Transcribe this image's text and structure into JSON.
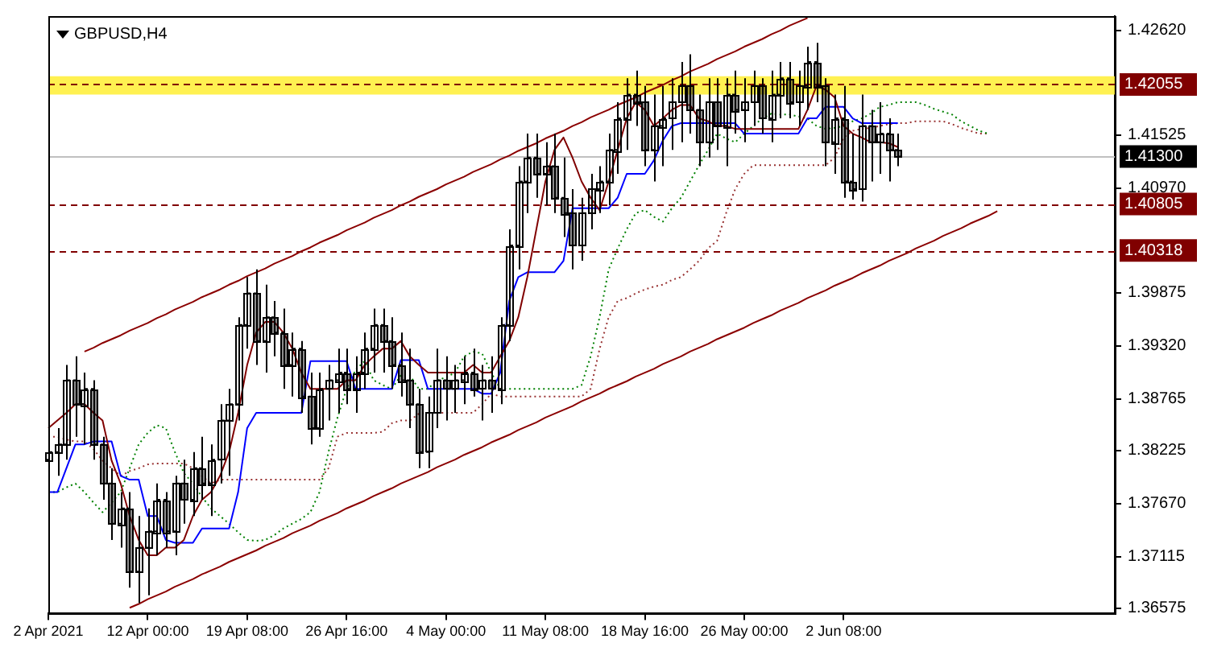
{
  "chart_data": {
    "type": "candlestick",
    "title": "GBPUSD,H4",
    "color": "#000000",
    "categories": [
      "2 Apr 2021",
      null,
      null,
      null,
      null,
      null,
      null,
      null,
      null,
      null,
      null,
      "12 Apr 00:00",
      null,
      null,
      null,
      null,
      null,
      null,
      null,
      null,
      null,
      null,
      "19 Apr 08:00",
      null,
      null,
      null,
      null,
      null,
      null,
      null,
      null,
      null,
      null,
      "26 Apr 16:00",
      null,
      null,
      null,
      null,
      null,
      null,
      null,
      null,
      null,
      null,
      "4 May 00:00",
      null,
      null,
      null,
      null,
      null,
      null,
      null,
      null,
      null,
      null,
      "11 May 08:00",
      null,
      null,
      null,
      null,
      null,
      null,
      null,
      null,
      null,
      null,
      "18 May 16:00",
      null,
      null,
      null,
      null,
      null,
      null,
      null,
      null,
      null,
      null,
      "26 May 00:00",
      null,
      null,
      null,
      null,
      null,
      null,
      null,
      null,
      null,
      null,
      "2 Jun 08:00",
      null,
      null,
      null,
      null,
      null,
      null,
      null,
      null,
      null,
      null,
      null,
      null,
      null,
      null,
      null,
      null,
      null,
      null,
      null,
      null,
      null,
      null,
      null,
      null,
      null,
      null,
      null,
      null,
      null,
      null
    ],
    "ohlc": [
      [
        1.3813,
        1.3837,
        1.3788,
        1.3821
      ],
      [
        1.3821,
        1.3846,
        1.3796,
        1.3829
      ],
      [
        1.3829,
        1.3912,
        1.3813,
        1.3896
      ],
      [
        1.3896,
        1.3921,
        1.3837,
        1.3871
      ],
      [
        1.3871,
        1.3904,
        1.3829,
        1.3887
      ],
      [
        1.3887,
        1.3896,
        1.3813,
        1.3829
      ],
      [
        1.3829,
        1.3837,
        1.3771,
        1.3788
      ],
      [
        1.3788,
        1.3804,
        1.3729,
        1.3746
      ],
      [
        1.3746,
        1.3779,
        1.3721,
        1.3762
      ],
      [
        1.3762,
        1.3779,
        1.3679,
        1.3696
      ],
      [
        1.3696,
        1.3754,
        1.3663,
        1.3721
      ],
      [
        1.3721,
        1.3762,
        1.3671,
        1.3738
      ],
      [
        1.3738,
        1.3788,
        1.3713,
        1.3771
      ],
      [
        1.3771,
        1.3779,
        1.3721,
        1.3738
      ],
      [
        1.3738,
        1.3796,
        1.3713,
        1.3788
      ],
      [
        1.3788,
        1.3813,
        1.3746,
        1.3771
      ],
      [
        1.3771,
        1.3821,
        1.3754,
        1.3804
      ],
      [
        1.3804,
        1.3837,
        1.3771,
        1.3788
      ],
      [
        1.3788,
        1.3829,
        1.3754,
        1.3813
      ],
      [
        1.3813,
        1.3871,
        1.3788,
        1.3854
      ],
      [
        1.3854,
        1.3887,
        1.3796,
        1.3871
      ],
      [
        1.3871,
        1.3962,
        1.3854,
        1.3954
      ],
      [
        1.3954,
        1.4004,
        1.3929,
        1.3987
      ],
      [
        1.3987,
        1.4012,
        1.3912,
        1.3937
      ],
      [
        1.3937,
        1.3996,
        1.3904,
        1.3962
      ],
      [
        1.3962,
        1.3979,
        1.3921,
        1.3946
      ],
      [
        1.3946,
        1.3971,
        1.3887,
        1.3912
      ],
      [
        1.3912,
        1.3946,
        1.3879,
        1.3929
      ],
      [
        1.3929,
        1.3937,
        1.3862,
        1.3879
      ],
      [
        1.3879,
        1.3904,
        1.3829,
        1.3846
      ],
      [
        1.3846,
        1.3904,
        1.3837,
        1.3887
      ],
      [
        1.3887,
        1.3912,
        1.3854,
        1.3896
      ],
      [
        1.3896,
        1.3929,
        1.3862,
        1.3904
      ],
      [
        1.3904,
        1.3929,
        1.3871,
        1.3887
      ],
      [
        1.3887,
        1.3921,
        1.3862,
        1.3904
      ],
      [
        1.3904,
        1.3946,
        1.3887,
        1.3929
      ],
      [
        1.3929,
        1.3971,
        1.3904,
        1.3954
      ],
      [
        1.3954,
        1.3971,
        1.3904,
        1.3937
      ],
      [
        1.3937,
        1.3962,
        1.3887,
        1.3912
      ],
      [
        1.3912,
        1.3946,
        1.3879,
        1.3896
      ],
      [
        1.3896,
        1.3929,
        1.3846,
        1.3871
      ],
      [
        1.3871,
        1.3887,
        1.3804,
        1.3821
      ],
      [
        1.3821,
        1.3879,
        1.3804,
        1.3862
      ],
      [
        1.3862,
        1.3929,
        1.3846,
        1.3896
      ],
      [
        1.3896,
        1.3921,
        1.3854,
        1.3887
      ],
      [
        1.3887,
        1.3912,
        1.3862,
        1.3896
      ],
      [
        1.3896,
        1.3921,
        1.3871,
        1.3904
      ],
      [
        1.3904,
        1.3929,
        1.3879,
        1.3887
      ],
      [
        1.3887,
        1.3912,
        1.3854,
        1.3896
      ],
      [
        1.3896,
        1.3921,
        1.3862,
        1.3887
      ],
      [
        1.3887,
        1.3962,
        1.3871,
        1.3954
      ],
      [
        1.3954,
        1.4054,
        1.3937,
        1.4037
      ],
      [
        1.4037,
        1.412,
        1.4012,
        1.4104
      ],
      [
        1.4104,
        1.4154,
        1.4071,
        1.4129
      ],
      [
        1.4129,
        1.4154,
        1.4087,
        1.4112
      ],
      [
        1.4112,
        1.4145,
        1.4079,
        1.412
      ],
      [
        1.412,
        1.4154,
        1.4071,
        1.4087
      ],
      [
        1.4087,
        1.4129,
        1.4046,
        1.4071
      ],
      [
        1.4071,
        1.4096,
        1.4012,
        1.4037
      ],
      [
        1.4037,
        1.4087,
        1.4021,
        1.4071
      ],
      [
        1.4071,
        1.4112,
        1.4054,
        1.4096
      ],
      [
        1.4096,
        1.412,
        1.4071,
        1.4104
      ],
      [
        1.4104,
        1.4154,
        1.4079,
        1.4137
      ],
      [
        1.4137,
        1.4187,
        1.4112,
        1.417
      ],
      [
        1.417,
        1.4212,
        1.4137,
        1.4195
      ],
      [
        1.4195,
        1.422,
        1.4162,
        1.4187
      ],
      [
        1.4187,
        1.4204,
        1.412,
        1.4137
      ],
      [
        1.4137,
        1.4195,
        1.4104,
        1.4162
      ],
      [
        1.4162,
        1.4204,
        1.412,
        1.417
      ],
      [
        1.417,
        1.4212,
        1.4137,
        1.4187
      ],
      [
        1.4187,
        1.4229,
        1.4145,
        1.4204
      ],
      [
        1.4204,
        1.4237,
        1.4154,
        1.4179
      ],
      [
        1.4179,
        1.4195,
        1.412,
        1.4145
      ],
      [
        1.4145,
        1.4212,
        1.4129,
        1.4187
      ],
      [
        1.4187,
        1.4212,
        1.4137,
        1.4162
      ],
      [
        1.4162,
        1.4212,
        1.412,
        1.4195
      ],
      [
        1.4195,
        1.422,
        1.4154,
        1.4179
      ],
      [
        1.4179,
        1.4212,
        1.4145,
        1.4187
      ],
      [
        1.4187,
        1.422,
        1.4162,
        1.4204
      ],
      [
        1.4204,
        1.4212,
        1.4154,
        1.417
      ],
      [
        1.417,
        1.422,
        1.4145,
        1.4195
      ],
      [
        1.4195,
        1.4229,
        1.417,
        1.4212
      ],
      [
        1.4212,
        1.4229,
        1.417,
        1.4187
      ],
      [
        1.4187,
        1.422,
        1.4162,
        1.4204
      ],
      [
        1.4204,
        1.4245,
        1.4179,
        1.4229
      ],
      [
        1.4229,
        1.4249,
        1.4187,
        1.4204
      ],
      [
        1.4204,
        1.4212,
        1.412,
        1.4145
      ],
      [
        1.4145,
        1.4195,
        1.4112,
        1.417
      ],
      [
        1.417,
        1.4204,
        1.4087,
        1.4104
      ],
      [
        1.4104,
        1.4154,
        1.4085,
        1.4096
      ],
      [
        1.4096,
        1.4195,
        1.4083,
        1.4162
      ],
      [
        1.4162,
        1.4179,
        1.4104,
        1.4145
      ],
      [
        1.4145,
        1.4187,
        1.4112,
        1.4154
      ],
      [
        1.4154,
        1.417,
        1.4104,
        1.4137
      ],
      [
        1.4137,
        1.4154,
        1.412,
        1.413
      ],
      null,
      null,
      null,
      null,
      null,
      null,
      null,
      null,
      null,
      null,
      null,
      null,
      null,
      null,
      null,
      null,
      null,
      null,
      null,
      null,
      null,
      null,
      null,
      null
    ],
    "series": [
      {
        "type": "line",
        "color": "#800000",
        "values": [
          1.3846,
          1.3854,
          1.3862,
          1.3871,
          1.3871,
          1.3862,
          1.3854,
          1.3812,
          1.3788,
          1.3754,
          1.3729,
          1.3713,
          1.3713,
          1.3721,
          1.3721,
          1.3729,
          1.3754,
          1.3771,
          1.3779,
          1.3796,
          1.3821,
          1.3862,
          1.3912,
          1.3946,
          1.3957,
          1.3957,
          1.3946,
          1.3929,
          1.3904,
          1.3887,
          1.3887,
          1.3887,
          1.3887,
          1.3896,
          1.3896,
          1.3912,
          1.3921,
          1.3929,
          1.3929,
          1.3937,
          1.3921,
          1.3912,
          1.3904,
          1.3904,
          1.3904,
          1.3904,
          1.3904,
          1.3912,
          1.3904,
          1.3904,
          1.3921,
          1.3937,
          1.3962,
          1.4004,
          1.4054,
          1.4104,
          1.4137,
          1.415,
          1.4129,
          1.4104,
          1.4087,
          1.4074,
          1.4104,
          1.4137,
          1.417,
          1.4187,
          1.4179,
          1.4162,
          1.417,
          1.4179,
          1.4184,
          1.4184,
          1.417,
          1.4167,
          1.4162,
          1.4162,
          1.4159,
          1.4159,
          1.4159,
          1.4159,
          1.4159,
          1.4159,
          1.4159,
          1.4159,
          1.4179,
          1.4204,
          1.42,
          1.4192,
          1.4162,
          1.4154,
          1.415,
          1.4145,
          1.4145,
          1.4144,
          1.414,
          null,
          null,
          null,
          null,
          null,
          null,
          null,
          null,
          null,
          null,
          null,
          null,
          null,
          null,
          null,
          null,
          null,
          null,
          null,
          null,
          null,
          null,
          null,
          null
        ]
      },
      {
        "type": "line",
        "color": "#0000ff",
        "values": [
          1.3779,
          1.3779,
          1.3804,
          1.3829,
          1.3829,
          1.3832,
          1.3832,
          1.3832,
          1.3796,
          1.3792,
          1.3792,
          1.3754,
          1.3754,
          1.3729,
          1.3726,
          1.3726,
          1.3726,
          1.3741,
          1.3741,
          1.3741,
          1.3741,
          1.3779,
          1.3846,
          1.3862,
          1.3862,
          1.3862,
          1.3862,
          1.3862,
          1.3862,
          1.3916,
          1.3916,
          1.3916,
          1.3916,
          1.3916,
          1.3887,
          1.3887,
          1.3887,
          1.3887,
          1.3887,
          1.3917,
          1.3917,
          1.3917,
          1.3887,
          1.3887,
          1.3887,
          1.3887,
          1.3887,
          1.3887,
          1.3882,
          1.3882,
          1.3904,
          1.3979,
          1.4004,
          1.4009,
          1.4009,
          1.4009,
          1.4009,
          1.4021,
          1.4076,
          1.4076,
          1.4076,
          1.4076,
          1.4076,
          1.4087,
          1.4112,
          1.4112,
          1.4112,
          1.4126,
          1.4147,
          1.4162,
          1.4165,
          1.4165,
          1.4165,
          1.4165,
          1.4165,
          1.4165,
          1.4165,
          1.4154,
          1.4154,
          1.4154,
          1.4154,
          1.4154,
          1.4154,
          1.4154,
          1.417,
          1.417,
          1.4182,
          1.4182,
          1.4182,
          1.417,
          1.4165,
          1.4165,
          1.4165,
          1.4165,
          1.4165,
          null,
          null,
          null,
          null,
          null,
          null,
          null,
          null,
          null,
          null,
          null,
          null,
          null,
          null,
          null,
          null,
          null,
          null,
          null,
          null,
          null,
          null,
          null,
          null
        ]
      },
      {
        "type": "line",
        "color": "#008000",
        "line_style": "dotted",
        "values": [
          1.3779,
          1.3779,
          1.3784,
          1.3788,
          1.3779,
          1.3768,
          1.3758,
          1.3768,
          1.3779,
          1.3804,
          1.3829,
          1.3841,
          1.3849,
          1.3846,
          1.3821,
          1.3799,
          1.3788,
          1.3774,
          1.3762,
          1.3754,
          1.3746,
          1.3737,
          1.3729,
          1.3728,
          1.3729,
          1.3734,
          1.3741,
          1.3746,
          1.3751,
          1.3758,
          1.3779,
          1.3821,
          1.3857,
          1.3887,
          1.3907,
          1.3916,
          1.3896,
          1.3891,
          1.3887,
          1.3901,
          1.3901,
          1.3887,
          1.3887,
          1.3896,
          1.3899,
          1.3904,
          1.3921,
          1.3926,
          1.3924,
          1.3904,
          1.3887,
          1.3887,
          1.3887,
          1.3887,
          1.3887,
          1.3887,
          1.3887,
          1.3887,
          1.3887,
          1.3891,
          1.3921,
          1.3962,
          1.4012,
          1.4034,
          1.4054,
          1.4071,
          1.4074,
          1.4067,
          1.4062,
          1.4076,
          1.4087,
          1.4104,
          1.4121,
          1.4137,
          1.4154,
          1.4149,
          1.4145,
          1.4154,
          1.4162,
          1.417,
          1.4175,
          1.4174,
          1.4174,
          1.4172,
          1.417,
          1.4162,
          1.4159,
          1.416,
          1.4162,
          1.4167,
          1.417,
          1.4175,
          1.4182,
          1.4184,
          1.4187,
          1.4187,
          1.4187,
          1.4184,
          1.418,
          1.4177,
          1.4174,
          1.4167,
          1.4162,
          1.4157,
          1.4154,
          null,
          null,
          null,
          null,
          null,
          null,
          null,
          null,
          null,
          null,
          null,
          null,
          null,
          null
        ]
      },
      {
        "type": "line",
        "color": "#993333",
        "line_style": "dotted",
        "values": [
          1.3837,
          1.3837,
          1.3834,
          1.3832,
          1.3832,
          1.3824,
          1.3812,
          1.3804,
          1.3796,
          1.3801,
          1.3804,
          1.3808,
          1.3809,
          1.3809,
          1.3809,
          1.3809,
          1.3804,
          1.3796,
          1.3788,
          1.3792,
          1.3792,
          1.3792,
          1.3792,
          1.3792,
          1.3792,
          1.3792,
          1.3792,
          1.3792,
          1.3792,
          1.3792,
          1.3792,
          1.3804,
          1.3837,
          1.3841,
          1.3841,
          1.3841,
          1.3841,
          1.3842,
          1.3851,
          1.3854,
          1.3854,
          1.3861,
          1.3862,
          1.3862,
          1.3862,
          1.3862,
          1.3862,
          1.3862,
          1.3871,
          1.3882,
          1.3879,
          1.3879,
          1.3879,
          1.3879,
          1.3879,
          1.3879,
          1.3879,
          1.3879,
          1.3879,
          1.3879,
          1.3887,
          1.3929,
          1.3962,
          1.3979,
          1.3982,
          1.3987,
          1.3991,
          1.3994,
          1.3996,
          1.4001,
          1.4004,
          1.4012,
          1.4021,
          1.4034,
          1.4042,
          1.4071,
          1.4096,
          1.4112,
          1.4121,
          1.4121,
          1.4121,
          1.4121,
          1.4121,
          1.4121,
          1.4121,
          1.4121,
          1.4121,
          1.4129,
          1.415,
          1.4157,
          1.4159,
          1.416,
          1.4162,
          1.4164,
          1.4165,
          1.4165,
          1.4167,
          1.4167,
          1.4167,
          1.4167,
          1.4164,
          1.416,
          1.4157,
          1.4154,
          1.4154,
          null,
          null,
          null,
          null,
          null,
          null,
          null,
          null,
          null,
          null,
          null,
          null,
          null,
          null
        ]
      },
      {
        "type": "line",
        "color": "#8b0000",
        "values": [
          null,
          null,
          null,
          null,
          1.3926,
          1.393,
          1.3935,
          1.3939,
          1.3943,
          1.3948,
          1.3952,
          1.3956,
          1.3961,
          1.3965,
          1.397,
          1.3974,
          1.3978,
          1.3983,
          1.3987,
          1.3991,
          1.3996,
          1.4,
          1.4005,
          1.4009,
          1.4013,
          1.4018,
          1.4022,
          1.4026,
          1.4031,
          1.4035,
          1.404,
          1.4044,
          1.4048,
          1.4053,
          1.4057,
          1.4061,
          1.4066,
          1.407,
          1.4074,
          1.4079,
          1.4083,
          1.4088,
          1.4092,
          1.4096,
          1.4101,
          1.4105,
          1.4109,
          1.4114,
          1.4118,
          1.4122,
          1.4127,
          1.4131,
          1.4136,
          1.414,
          1.4144,
          1.4149,
          1.4153,
          1.4157,
          1.4162,
          1.4166,
          1.4171,
          1.4175,
          1.4179,
          1.4184,
          1.4188,
          1.4192,
          1.4197,
          1.4201,
          1.4205,
          1.421,
          1.4214,
          1.4219,
          1.4223,
          1.4227,
          1.4232,
          1.4236,
          1.424,
          1.4245,
          1.4249,
          1.4253,
          1.4258,
          1.4262,
          1.4267,
          1.4271,
          1.4275,
          null,
          null,
          null,
          null,
          null,
          null,
          null,
          null,
          null,
          null,
          null,
          null,
          null,
          null,
          null,
          null,
          null,
          null,
          null,
          null,
          null,
          null,
          null,
          null,
          null,
          null,
          null,
          null,
          null,
          null,
          null,
          null,
          null,
          null
        ]
      },
      {
        "type": "line",
        "color": "#8b0000",
        "values": [
          null,
          null,
          null,
          null,
          null,
          null,
          null,
          null,
          null,
          1.3658,
          1.3662,
          1.3667,
          1.3671,
          1.3675,
          1.368,
          1.3684,
          1.3688,
          1.3693,
          1.3697,
          1.3701,
          1.3706,
          1.371,
          1.3714,
          1.3718,
          1.3723,
          1.3727,
          1.3731,
          1.3736,
          1.374,
          1.3744,
          1.3749,
          1.3753,
          1.3757,
          1.3762,
          1.3766,
          1.377,
          1.3775,
          1.3779,
          1.3783,
          1.3788,
          1.3792,
          1.3796,
          1.38,
          1.3805,
          1.3809,
          1.3813,
          1.3818,
          1.3822,
          1.3826,
          1.3831,
          1.3835,
          1.3839,
          1.3844,
          1.3848,
          1.3852,
          1.3857,
          1.3861,
          1.3865,
          1.3869,
          1.3874,
          1.3878,
          1.3882,
          1.3887,
          1.3891,
          1.3895,
          1.39,
          1.3904,
          1.3908,
          1.3913,
          1.3917,
          1.3921,
          1.3926,
          1.393,
          1.3934,
          1.3939,
          1.3943,
          1.3947,
          1.3951,
          1.3956,
          1.396,
          1.3964,
          1.3969,
          1.3973,
          1.3977,
          1.3982,
          1.3986,
          1.399,
          1.3995,
          1.3999,
          1.4003,
          1.4008,
          1.4012,
          1.4016,
          1.4021,
          1.4025,
          1.4029,
          1.4034,
          1.4038,
          1.4042,
          1.4047,
          1.4051,
          1.4055,
          1.406,
          1.4064,
          1.4068,
          1.4073,
          null,
          null,
          null,
          null,
          null,
          null,
          null,
          null,
          null,
          null,
          null,
          null,
          null
        ]
      }
    ],
    "ylim": [
      1.3652,
      1.4277
    ],
    "yticks": [
      {
        "value": 1.4262,
        "label": "1.42620"
      },
      {
        "value": 1.41525,
        "label": "1.41525"
      },
      {
        "value": 1.4097,
        "label": "1.40970"
      },
      {
        "value": 1.39875,
        "label": "1.39875"
      },
      {
        "value": 1.3932,
        "label": "1.39320"
      },
      {
        "value": 1.38765,
        "label": "1.38765"
      },
      {
        "value": 1.38225,
        "label": "1.38225"
      },
      {
        "value": 1.3767,
        "label": "1.37670"
      },
      {
        "value": 1.37115,
        "label": "1.37115"
      },
      {
        "value": 1.36575,
        "label": "1.36575"
      }
    ],
    "ref_lines": [
      {
        "axis": "y",
        "value": 1.42055,
        "label": "1.42055",
        "color": "#800000",
        "line_style": "dashed"
      },
      {
        "axis": "y",
        "value": 1.413,
        "label": "1.41300",
        "color": "#c0c0c0",
        "line_style": "solid"
      },
      {
        "axis": "y",
        "value": 1.40805,
        "label": "1.40805",
        "color": "#800000",
        "line_style": "dashed"
      },
      {
        "axis": "y",
        "value": 1.40318,
        "label": "1.40318",
        "color": "#800000",
        "line_style": "dashed"
      }
    ],
    "bands": [
      {
        "axis": "y",
        "from": 1.4195,
        "to": 1.4214,
        "color": "#ffee33"
      }
    ],
    "grid": false,
    "legend": false
  }
}
